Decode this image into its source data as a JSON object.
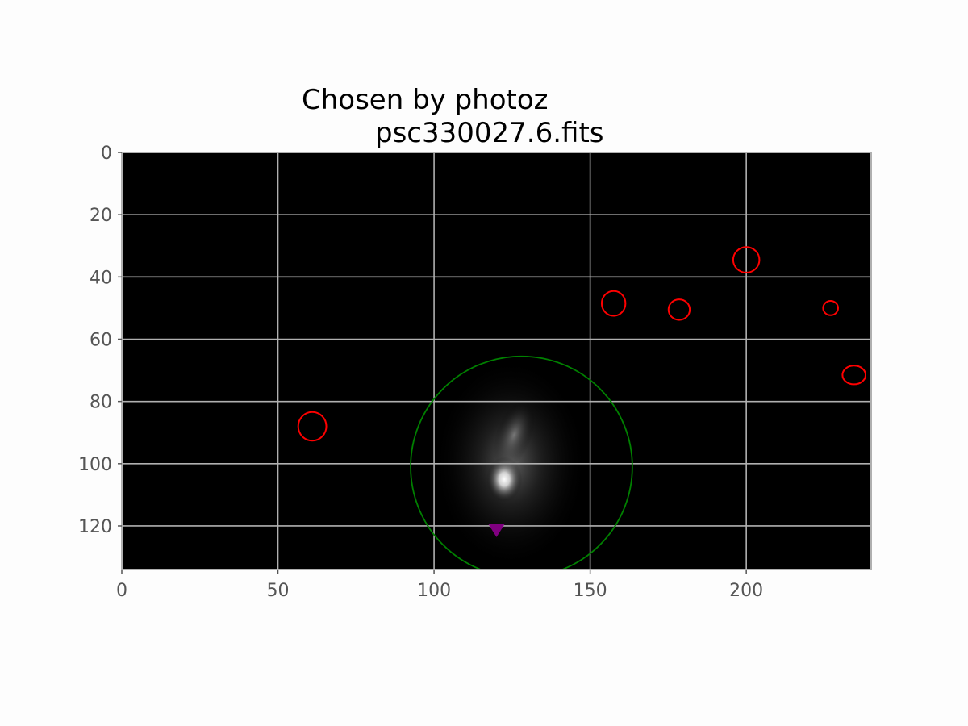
{
  "chart_data": {
    "type": "image",
    "title_line1": "Chosen by photoz",
    "title_line2": "psc330027.6.fits",
    "xlim": [
      0,
      240
    ],
    "ylim": [
      0,
      134
    ],
    "y_inverted": true,
    "grid": true,
    "x_ticks": [
      0,
      50,
      100,
      150,
      200
    ],
    "y_ticks": [
      0,
      20,
      40,
      60,
      80,
      100,
      120
    ],
    "colormap": "gray",
    "source": {
      "x": 122.5,
      "y": 105
    },
    "green_ellipse": {
      "cx": 128,
      "cy": 101,
      "rx": 35.5,
      "ry": 35.5,
      "angle": 0,
      "color": "#008000"
    },
    "red_ellipses": [
      {
        "cx": 61,
        "cy": 88,
        "rx": 4.5,
        "ry": 4.6,
        "color": "#ff0000"
      },
      {
        "cx": 157.5,
        "cy": 48.5,
        "rx": 3.8,
        "ry": 4.0,
        "color": "#ff0000"
      },
      {
        "cx": 178.5,
        "cy": 50.5,
        "rx": 3.4,
        "ry": 3.3,
        "color": "#ff0000"
      },
      {
        "cx": 200,
        "cy": 34.5,
        "rx": 4.2,
        "ry": 4.1,
        "color": "#ff0000"
      },
      {
        "cx": 227,
        "cy": 50,
        "rx": 2.4,
        "ry": 2.3,
        "color": "#ff0000"
      },
      {
        "cx": 234.5,
        "cy": 71.5,
        "rx": 3.7,
        "ry": 3.0,
        "color": "#ff0000"
      }
    ],
    "marker": {
      "x": 120,
      "y": 121,
      "shape": "triangle-down",
      "color": "#800080"
    }
  }
}
